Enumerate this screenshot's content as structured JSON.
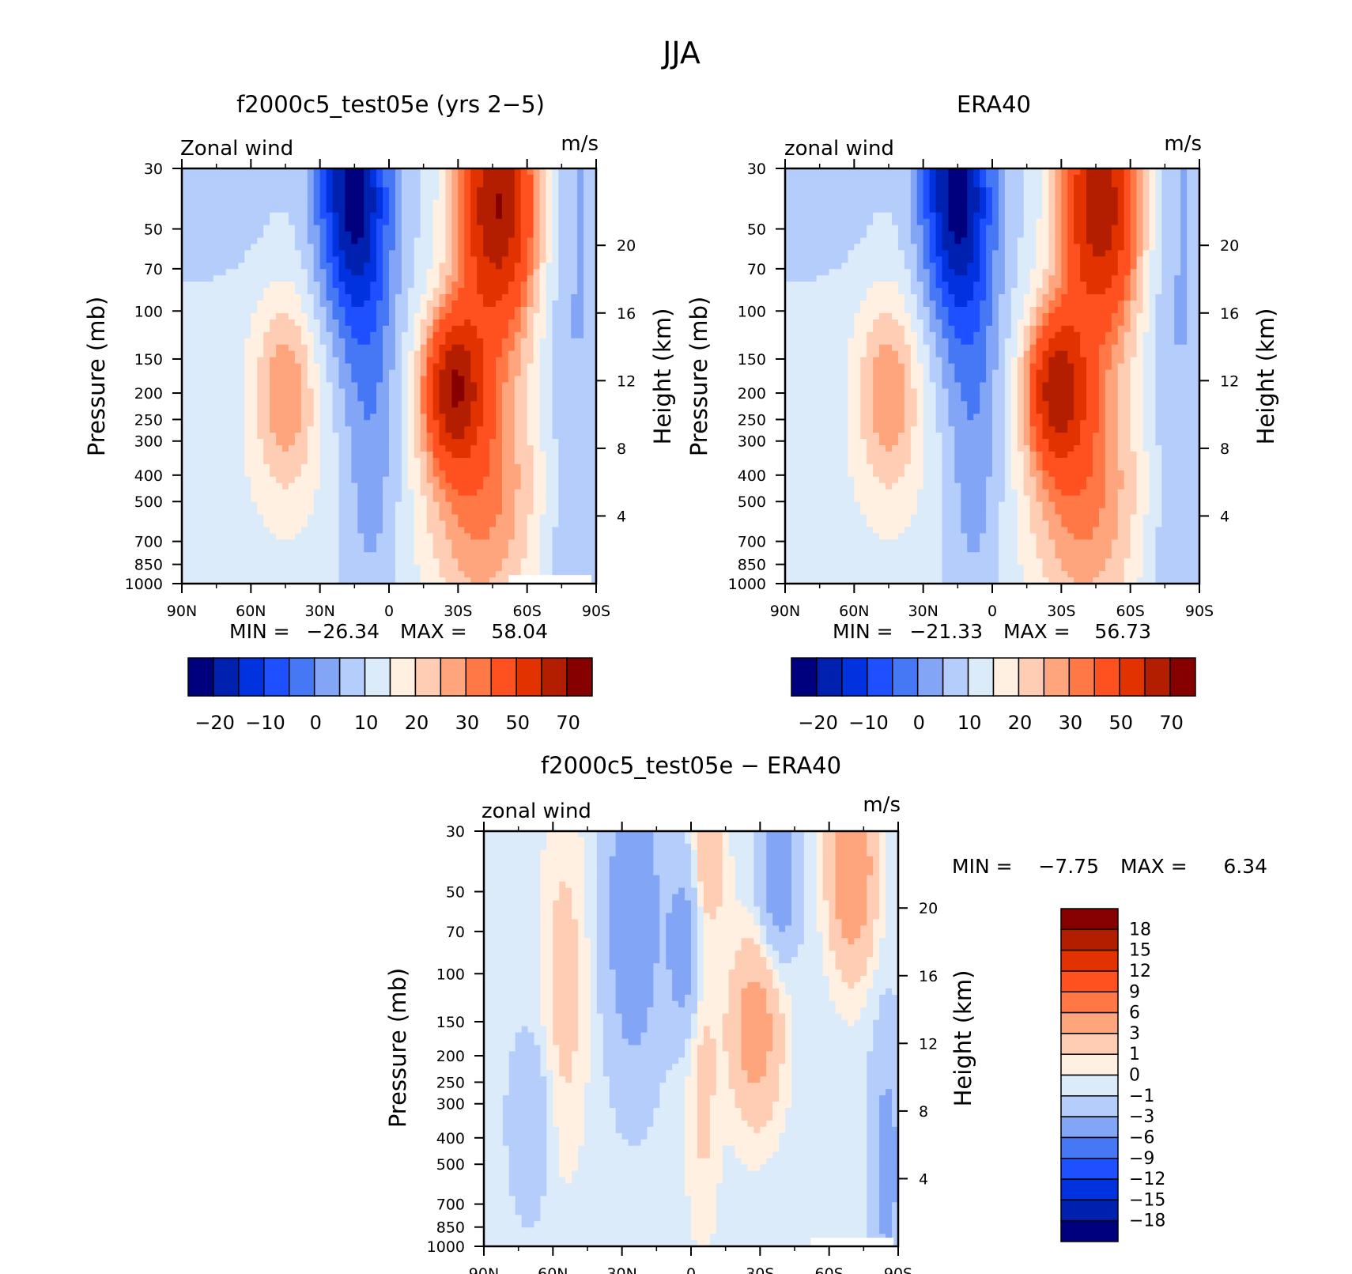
{
  "figure_title": "JJA",
  "colors": {
    "abs_scale": [
      "#00007f",
      "#0020b0",
      "#0032e0",
      "#1e50ff",
      "#4678f5",
      "#82a5f5",
      "#b4cdfa",
      "#dcebfa",
      "#fff0e1",
      "#ffcdb4",
      "#ffa57d",
      "#ff7846",
      "#ff5020",
      "#e13200",
      "#b41e00",
      "#870000"
    ],
    "diff_scale": [
      "#00007f",
      "#0020b0",
      "#0032e0",
      "#1e50ff",
      "#4678f5",
      "#82a5f5",
      "#b4cdfa",
      "#dcebfa",
      "#fff0e1",
      "#ffcdb4",
      "#ffa57d",
      "#ff7846",
      "#ff5020",
      "#e13200",
      "#b41e00",
      "#870000"
    ]
  },
  "chart_data": [
    {
      "type": "heatmap",
      "title": "f2000c5_test05e (yrs 2−5)",
      "variable_label": "Zonal wind",
      "units": "m/s",
      "ylabel": "Pressure (mb)",
      "ylabel_right": "Height (km)",
      "x_ticks": [
        "90N",
        "60N",
        "30N",
        "0",
        "30S",
        "60S",
        "90S"
      ],
      "y_ticks": [
        30,
        50,
        70,
        100,
        150,
        200,
        250,
        300,
        400,
        500,
        700,
        850,
        1000
      ],
      "y_ticks_right": [
        20,
        16,
        12,
        8,
        4
      ],
      "min_label": "MIN =",
      "min_value": "−26.34",
      "max_label": "MAX =",
      "max_value": "58.04",
      "colorbar_labels": [
        "−20",
        "−10",
        "0",
        "10",
        "20",
        "30",
        "50",
        "70"
      ],
      "features": [
        {
          "lat": -45,
          "p": 35,
          "value": 55
        },
        {
          "lat": -27,
          "p": 200,
          "value": 45
        },
        {
          "lat": 18,
          "p": 40,
          "value": -25
        },
        {
          "lat": 45,
          "p": 200,
          "value": 18
        }
      ]
    },
    {
      "type": "heatmap",
      "title": "ERA40",
      "variable_label": "zonal wind",
      "units": "m/s",
      "ylabel": "Pressure (mb)",
      "ylabel_right": "Height (km)",
      "x_ticks": [
        "90N",
        "60N",
        "30N",
        "0",
        "30S",
        "60S",
        "90S"
      ],
      "y_ticks": [
        30,
        50,
        70,
        100,
        150,
        200,
        250,
        300,
        400,
        500,
        700,
        850,
        1000
      ],
      "y_ticks_right": [
        20,
        16,
        12,
        8,
        4
      ],
      "min_label": "MIN =",
      "min_value": "−21.33",
      "max_label": "MAX =",
      "max_value": "56.73",
      "colorbar_labels": [
        "−20",
        "−10",
        "0",
        "10",
        "20",
        "30",
        "50",
        "70"
      ],
      "features": [
        {
          "lat": -45,
          "p": 35,
          "value": 55
        },
        {
          "lat": -30,
          "p": 200,
          "value": 42
        },
        {
          "lat": 15,
          "p": 35,
          "value": -21
        },
        {
          "lat": 45,
          "p": 200,
          "value": 18
        }
      ]
    },
    {
      "type": "heatmap",
      "title": "f2000c5_test05e − ERA40",
      "variable_label": "zonal wind",
      "units": "m/s",
      "ylabel": "Pressure (mb)",
      "ylabel_right": "Height (km)",
      "x_ticks": [
        "90N",
        "60N",
        "30N",
        "0",
        "30S",
        "60S",
        "90S"
      ],
      "y_ticks": [
        30,
        50,
        70,
        100,
        150,
        200,
        250,
        300,
        400,
        500,
        700,
        850,
        1000
      ],
      "y_ticks_right": [
        20,
        16,
        12,
        8,
        4
      ],
      "min_label": "MIN =",
      "min_value": "−7.75",
      "max_label": "MAX =",
      "max_value": "6.34",
      "colorbar_labels": [
        "18",
        "15",
        "12",
        "9",
        "6",
        "3",
        "1",
        "0",
        "−1",
        "−3",
        "−6",
        "−9",
        "−12",
        "−15",
        "−18"
      ],
      "features": [
        {
          "lat": -70,
          "p": 40,
          "value": 6
        },
        {
          "lat": -28,
          "p": 150,
          "value": 5
        },
        {
          "lat": -8,
          "p": 40,
          "value": 3
        },
        {
          "lat": 55,
          "p": 100,
          "value": 2
        },
        {
          "lat": 25,
          "p": 80,
          "value": -5
        },
        {
          "lat": 3,
          "p": 80,
          "value": -4
        },
        {
          "lat": -35,
          "p": 40,
          "value": -5
        },
        {
          "lat": -83,
          "p": 500,
          "value": -3
        }
      ]
    }
  ]
}
